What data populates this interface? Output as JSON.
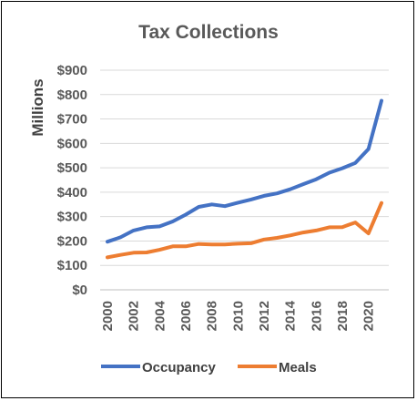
{
  "chart_data": {
    "type": "line",
    "title": "Tax Collections",
    "xlabel": "",
    "ylabel": "Millions",
    "x": [
      2000,
      2001,
      2002,
      2003,
      2004,
      2005,
      2006,
      2007,
      2008,
      2009,
      2010,
      2011,
      2012,
      2013,
      2014,
      2015,
      2016,
      2017,
      2018,
      2019,
      2020,
      2021
    ],
    "x_tick_labels": [
      "2000",
      "2002",
      "2004",
      "2006",
      "2008",
      "2010",
      "2012",
      "2014",
      "2016",
      "2018",
      "2020"
    ],
    "y_tick_labels": [
      "$0",
      "$100",
      "$200",
      "$300",
      "$400",
      "$500",
      "$600",
      "$700",
      "$800",
      "$900"
    ],
    "ylim": [
      0,
      900
    ],
    "grid": true,
    "legend": "bottom",
    "series": [
      {
        "name": "Occupancy",
        "color": "#4472c4",
        "values": [
          197,
          215,
          243,
          256,
          260,
          280,
          308,
          340,
          350,
          343,
          357,
          370,
          385,
          395,
          412,
          433,
          453,
          480,
          498,
          520,
          577,
          775
        ]
      },
      {
        "name": "Meals",
        "color": "#ed7d31",
        "values": [
          133,
          143,
          152,
          153,
          164,
          178,
          178,
          188,
          186,
          186,
          189,
          191,
          206,
          213,
          223,
          235,
          243,
          256,
          257,
          276,
          231,
          356
        ]
      }
    ]
  }
}
